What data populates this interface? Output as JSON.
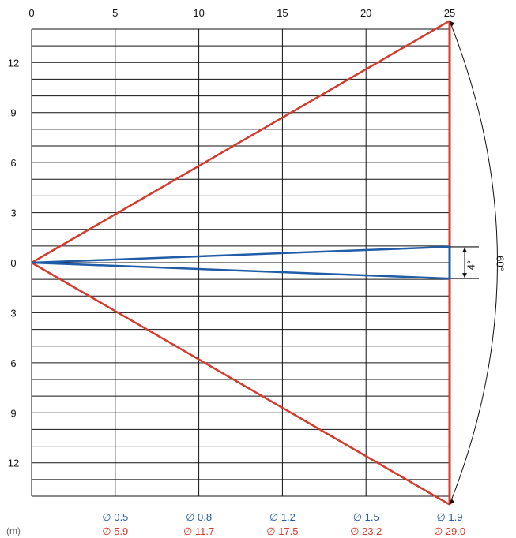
{
  "chart_data": {
    "type": "beam_diagram",
    "x_ticks": [
      "0",
      "5",
      "10",
      "15",
      "20",
      "25"
    ],
    "y_ticks": [
      "12",
      "9",
      "6",
      "3",
      "0",
      "3",
      "6",
      "9",
      "12"
    ],
    "x_range": [
      0,
      25
    ],
    "y_range": [
      -14,
      14
    ],
    "y_line_step": 1,
    "unit": "(m)",
    "narrow_beam": {
      "angle_deg": 4,
      "label": "4°",
      "color": "#1f5da8",
      "spread_at_25": 1.9
    },
    "wide_beam": {
      "angle_deg": 60,
      "label": "60°",
      "color": "#d63a2c",
      "spread_at_25": 29.0
    },
    "diameters_narrow": [
      "∅ 0.5",
      "∅ 0.8",
      "∅ 1.2",
      "∅ 1.5",
      "∅ 1.9"
    ],
    "diameters_wide": [
      "∅ 5.9",
      "∅ 11.7",
      "∅ 17.5",
      "∅ 23.2",
      "∅ 29.0"
    ],
    "grid": true
  }
}
